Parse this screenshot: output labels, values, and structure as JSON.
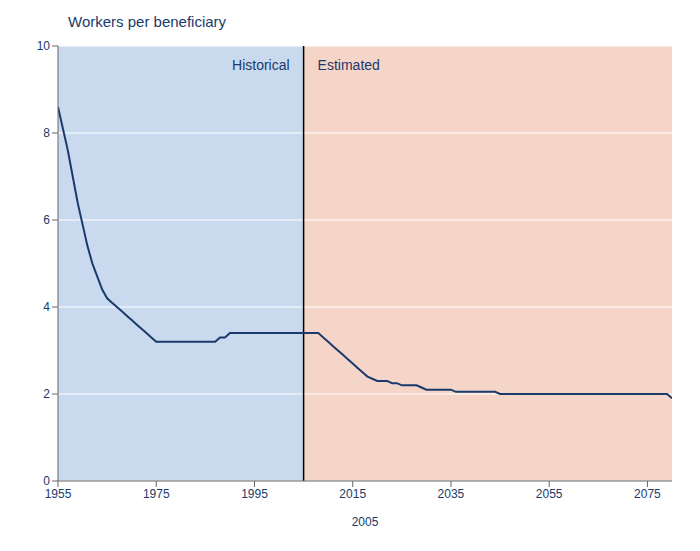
{
  "chart_data": {
    "type": "line",
    "title": "Workers per beneficiary",
    "xlabel": "2005",
    "color": "#1a3a6b",
    "grid": true,
    "xlim": [
      1955,
      2080
    ],
    "ylim": [
      0,
      10
    ],
    "xticks": [
      1955,
      1975,
      1995,
      2015,
      2035,
      2055,
      2075
    ],
    "yticks": [
      0,
      2,
      4,
      6,
      8,
      10
    ],
    "regions": [
      {
        "label": "Historical",
        "from": 1955,
        "to": 2005,
        "color": "#c9d9ee"
      },
      {
        "label": "Estimated",
        "from": 2005,
        "to": 2080,
        "color": "#f5d5c8"
      }
    ],
    "x": [
      1955,
      1956,
      1957,
      1958,
      1959,
      1960,
      1961,
      1962,
      1963,
      1964,
      1965,
      1966,
      1967,
      1968,
      1969,
      1970,
      1971,
      1972,
      1973,
      1974,
      1975,
      1976,
      1977,
      1978,
      1979,
      1980,
      1981,
      1982,
      1983,
      1984,
      1985,
      1986,
      1987,
      1988,
      1989,
      1990,
      1991,
      1992,
      1993,
      1994,
      1995,
      1996,
      1997,
      1998,
      1999,
      2000,
      2001,
      2002,
      2003,
      2004,
      2005,
      2006,
      2007,
      2008,
      2009,
      2010,
      2011,
      2012,
      2013,
      2014,
      2015,
      2016,
      2017,
      2018,
      2019,
      2020,
      2021,
      2022,
      2023,
      2024,
      2025,
      2026,
      2027,
      2028,
      2029,
      2030,
      2031,
      2032,
      2033,
      2034,
      2035,
      2036,
      2037,
      2038,
      2039,
      2040,
      2041,
      2042,
      2043,
      2044,
      2045,
      2046,
      2047,
      2048,
      2049,
      2050,
      2051,
      2052,
      2053,
      2054,
      2055,
      2056,
      2057,
      2058,
      2059,
      2060,
      2061,
      2062,
      2063,
      2064,
      2065,
      2066,
      2067,
      2068,
      2069,
      2070,
      2071,
      2072,
      2073,
      2074,
      2075,
      2076,
      2077,
      2078,
      2079,
      2080
    ],
    "values": [
      8.6,
      8.1,
      7.6,
      7.0,
      6.4,
      5.9,
      5.4,
      5.0,
      4.7,
      4.4,
      4.2,
      4.1,
      4.0,
      3.9,
      3.8,
      3.7,
      3.6,
      3.5,
      3.4,
      3.3,
      3.2,
      3.2,
      3.2,
      3.2,
      3.2,
      3.2,
      3.2,
      3.2,
      3.2,
      3.2,
      3.2,
      3.2,
      3.2,
      3.3,
      3.3,
      3.4,
      3.4,
      3.4,
      3.4,
      3.4,
      3.4,
      3.4,
      3.4,
      3.4,
      3.4,
      3.4,
      3.4,
      3.4,
      3.4,
      3.4,
      3.4,
      3.4,
      3.4,
      3.4,
      3.3,
      3.2,
      3.1,
      3.0,
      2.9,
      2.8,
      2.7,
      2.6,
      2.5,
      2.4,
      2.35,
      2.3,
      2.3,
      2.3,
      2.25,
      2.25,
      2.2,
      2.2,
      2.2,
      2.2,
      2.15,
      2.1,
      2.1,
      2.1,
      2.1,
      2.1,
      2.1,
      2.05,
      2.05,
      2.05,
      2.05,
      2.05,
      2.05,
      2.05,
      2.05,
      2.05,
      2.0,
      2.0,
      2.0,
      2.0,
      2.0,
      2.0,
      2.0,
      2.0,
      2.0,
      2.0,
      2.0,
      2.0,
      2.0,
      2.0,
      2.0,
      2.0,
      2.0,
      2.0,
      2.0,
      2.0,
      2.0,
      2.0,
      2.0,
      2.0,
      2.0,
      2.0,
      2.0,
      2.0,
      2.0,
      2.0,
      2.0,
      2.0,
      2.0,
      2.0,
      2.0,
      1.9
    ]
  }
}
